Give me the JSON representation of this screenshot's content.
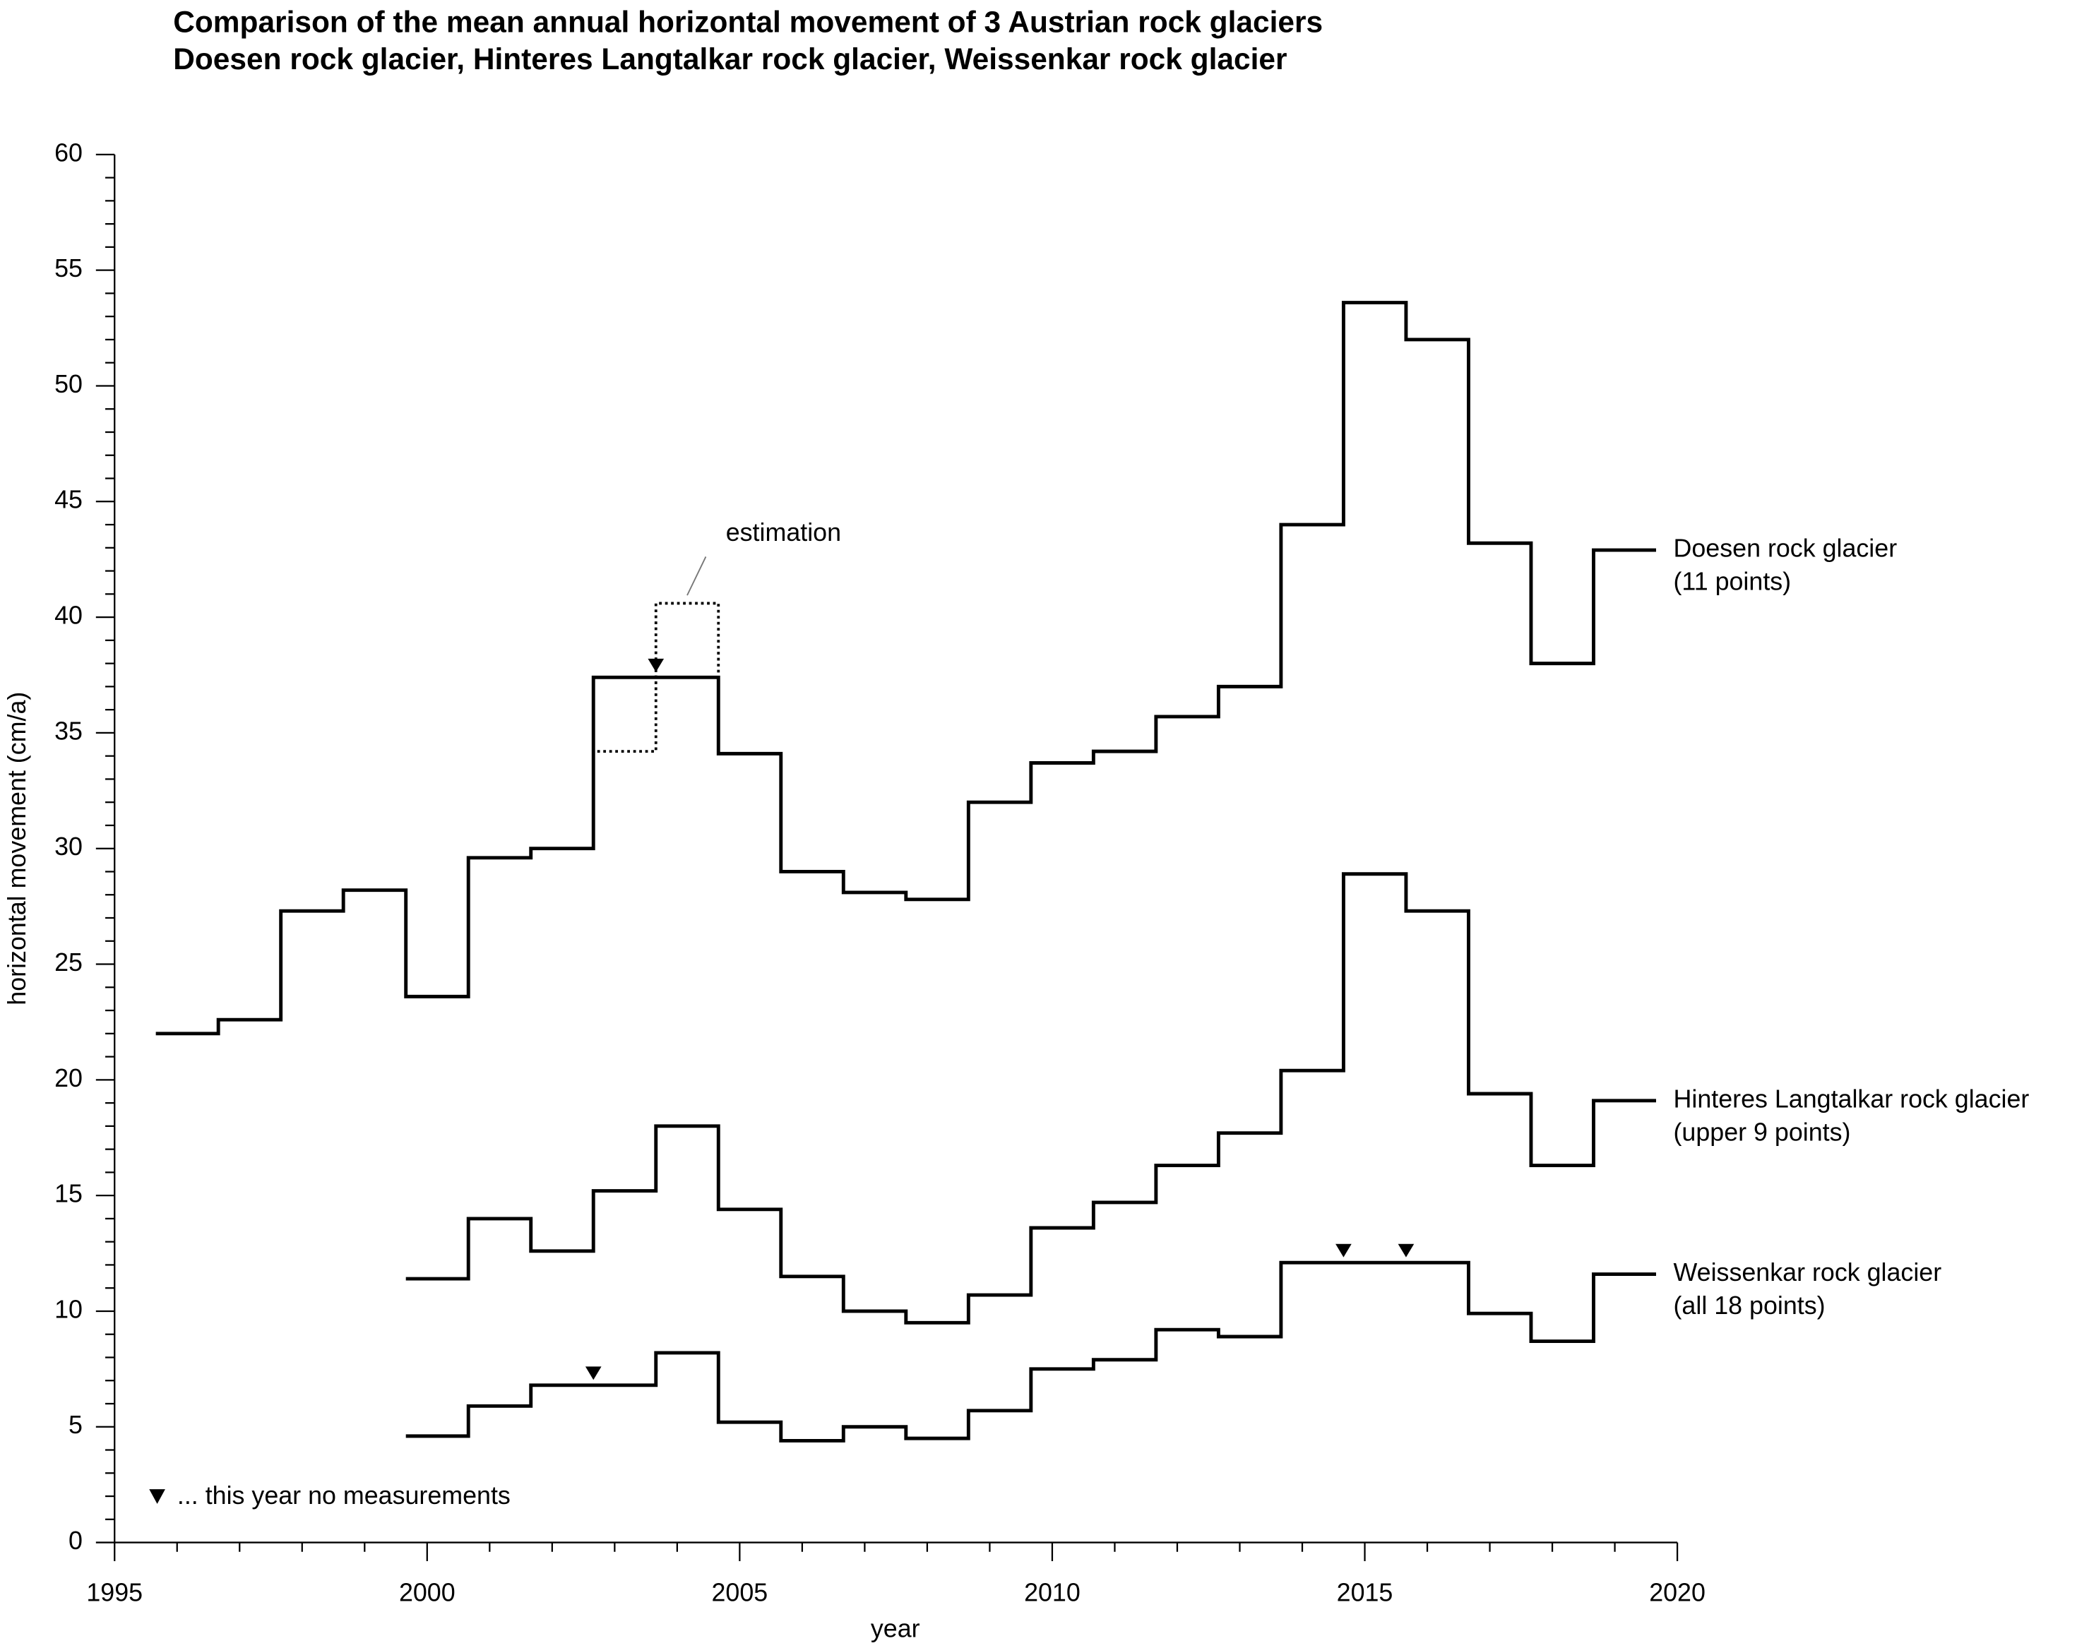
{
  "chart_data": {
    "type": "step",
    "title": "Comparison of the mean annual horizontal movement of 3 Austrian rock glaciers",
    "subtitle": "Doesen rock glacier, Hinteres Langtalkar rock glacier, Weissenkar rock glacier",
    "xlabel": "year",
    "ylabel": "horizontal movement (cm/a)",
    "xlim": [
      1995,
      2020
    ],
    "xticks": [
      1995,
      2000,
      2005,
      2010,
      2015,
      2020
    ],
    "ylim": [
      0,
      60
    ],
    "yticks": [
      0,
      5,
      10,
      15,
      20,
      25,
      30,
      35,
      40,
      45,
      50,
      55,
      60
    ],
    "series": [
      {
        "name": "Doesen rock glacier",
        "note": "(11 points)",
        "color": "#000000",
        "x": [
          1995.66,
          1996.66,
          1997.66,
          1998.66,
          1999.66,
          2000.66,
          2001.66,
          2002.66,
          2003.66,
          2004.66,
          2005.66,
          2006.66,
          2007.66,
          2008.66,
          2009.66,
          2010.66,
          2011.66,
          2012.66,
          2013.66,
          2014.66,
          2015.66,
          2016.66,
          2017.66,
          2018.66
        ],
        "values": [
          22.0,
          22.6,
          27.3,
          28.2,
          23.6,
          29.6,
          30.0,
          37.4,
          37.4,
          34.1,
          29.0,
          28.1,
          27.8,
          32.0,
          33.7,
          34.2,
          35.7,
          37.0,
          44.0,
          53.6,
          52.0,
          43.2,
          38.0,
          42.9
        ]
      },
      {
        "name": "Hinteres Langtalkar rock glacier",
        "note": "(upper 9 points)",
        "color": "#000000",
        "x": [
          1999.66,
          2000.66,
          2001.66,
          2002.66,
          2003.66,
          2004.66,
          2005.66,
          2006.66,
          2007.66,
          2008.66,
          2009.66,
          2010.66,
          2011.66,
          2012.66,
          2013.66,
          2014.66,
          2015.66,
          2016.66,
          2017.66,
          2018.66
        ],
        "values": [
          11.4,
          14.0,
          12.6,
          15.2,
          18.0,
          14.4,
          11.5,
          10.0,
          9.5,
          10.7,
          13.6,
          14.7,
          16.3,
          17.7,
          20.4,
          28.9,
          27.3,
          19.4,
          16.3,
          19.1
        ]
      },
      {
        "name": "Weissenkar rock glacier",
        "note": "(all 18 points)",
        "color": "#000000",
        "x": [
          1999.66,
          2000.66,
          2001.66,
          2002.66,
          2003.66,
          2004.66,
          2005.66,
          2006.66,
          2007.66,
          2008.66,
          2009.66,
          2010.66,
          2011.66,
          2012.66,
          2013.66,
          2014.66,
          2015.66,
          2016.66,
          2017.66,
          2018.66
        ],
        "values": [
          4.6,
          5.9,
          6.8,
          6.8,
          8.2,
          5.2,
          4.4,
          5.0,
          4.5,
          5.7,
          7.5,
          7.9,
          9.2,
          8.9,
          12.1,
          12.1,
          12.1,
          9.9,
          8.7,
          11.6
        ]
      }
    ],
    "estimation": {
      "label": "estimation",
      "x": [
        2002.66,
        2003.66
      ],
      "values": [
        34.2,
        40.6
      ]
    },
    "no_measurement": {
      "label": "... this year no measurements",
      "x": [
        2003.66,
        2002.66,
        2014.66,
        2015.66
      ],
      "values": [
        37.4,
        6.8,
        12.1,
        12.1
      ]
    }
  }
}
